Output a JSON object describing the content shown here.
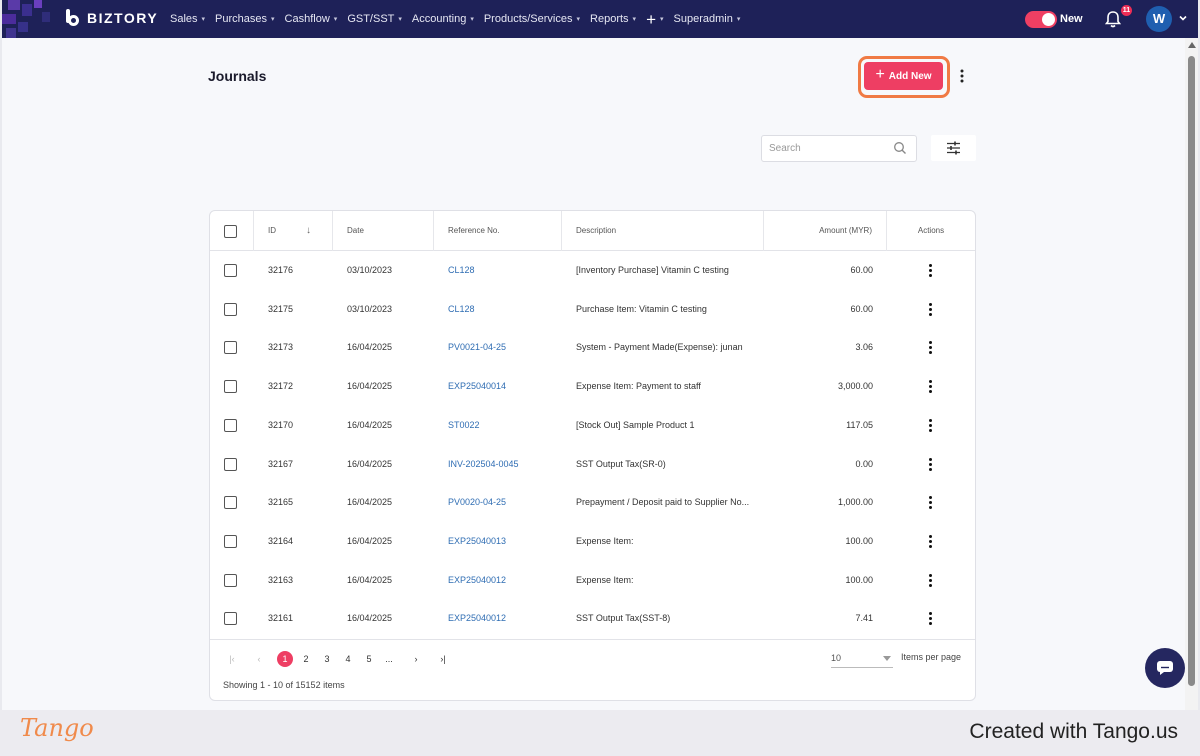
{
  "nav": {
    "brand": "BIZTORY",
    "menu": [
      {
        "label": "Sales"
      },
      {
        "label": "Purchases"
      },
      {
        "label": "Cashflow"
      },
      {
        "label": "GST/SST"
      },
      {
        "label": "Accounting"
      },
      {
        "label": "Products/Services"
      },
      {
        "label": "Reports"
      },
      {
        "label": "+"
      },
      {
        "label": "Superadmin"
      }
    ],
    "toggle_label": "New",
    "notification_count": "11",
    "avatar_initial": "W"
  },
  "page": {
    "title": "Journals",
    "add_button": "Add New",
    "search_placeholder": "Search"
  },
  "table": {
    "columns": [
      "ID",
      "Date",
      "Reference No.",
      "Description",
      "Amount (MYR)",
      "Actions"
    ],
    "rows": [
      {
        "id": "32176",
        "date": "03/10/2023",
        "ref": "CL128",
        "desc": "[Inventory Purchase] Vitamin C testing",
        "amount": "60.00"
      },
      {
        "id": "32175",
        "date": "03/10/2023",
        "ref": "CL128",
        "desc": "Purchase Item: Vitamin C testing",
        "amount": "60.00"
      },
      {
        "id": "32173",
        "date": "16/04/2025",
        "ref": "PV0021-04-25",
        "desc": "System - Payment Made(Expense): junan",
        "amount": "3.06"
      },
      {
        "id": "32172",
        "date": "16/04/2025",
        "ref": "EXP25040014",
        "desc": "Expense Item: Payment to staff",
        "amount": "3,000.00"
      },
      {
        "id": "32170",
        "date": "16/04/2025",
        "ref": "ST0022",
        "desc": "[Stock Out] Sample Product 1",
        "amount": "117.05"
      },
      {
        "id": "32167",
        "date": "16/04/2025",
        "ref": "INV-202504-0045",
        "desc": "SST Output Tax(SR-0)",
        "amount": "0.00"
      },
      {
        "id": "32165",
        "date": "16/04/2025",
        "ref": "PV0020-04-25",
        "desc": "Prepayment / Deposit paid to Supplier No...",
        "amount": "1,000.00"
      },
      {
        "id": "32164",
        "date": "16/04/2025",
        "ref": "EXP25040013",
        "desc": "Expense Item:",
        "amount": "100.00"
      },
      {
        "id": "32163",
        "date": "16/04/2025",
        "ref": "EXP25040012",
        "desc": "Expense Item:",
        "amount": "100.00"
      },
      {
        "id": "32161",
        "date": "16/04/2025",
        "ref": "EXP25040012",
        "desc": "SST Output Tax(SST-8)",
        "amount": "7.41"
      }
    ]
  },
  "pagination": {
    "pages": [
      "1",
      "2",
      "3",
      "4",
      "5",
      "..."
    ],
    "current_page": "1",
    "per_page": "10",
    "per_page_label": "Items per page",
    "showing": "Showing 1 - 10 of 15152 items"
  },
  "footer": {
    "brand": "Tango",
    "created_with": "Created with Tango.us"
  },
  "colors": {
    "nav_bg": "#1e2158",
    "accent": "#ee3e63",
    "link": "#2f6db3",
    "highlight_ring": "#f07a44"
  }
}
